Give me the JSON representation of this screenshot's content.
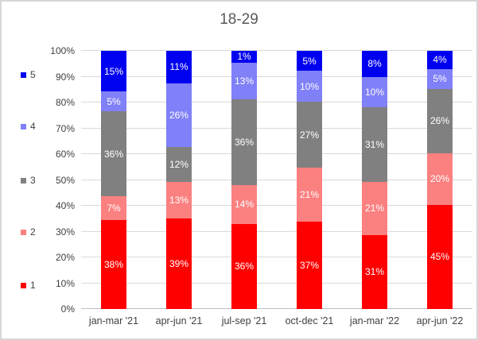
{
  "window": {
    "background": "#FFFFFF",
    "border_color": "#D7D7D7"
  },
  "chart_data": {
    "type": "bar",
    "subtype": "stacked-100",
    "title": "18-29",
    "title_color": "#595959",
    "categories": [
      "jan-mar '21",
      "apr-jun '21",
      "jul-sep '21",
      "oct-dec '21",
      "jan-mar '22",
      "apr-jun '22"
    ],
    "series": [
      {
        "name": "1",
        "color": "#FF0000",
        "values": [
          38,
          39,
          36,
          37,
          31,
          45
        ]
      },
      {
        "name": "2",
        "color": "#FB8080",
        "values": [
          7,
          13,
          14,
          21,
          21,
          20
        ]
      },
      {
        "name": "3",
        "color": "#808080",
        "values": [
          36,
          12,
          36,
          27,
          31,
          26
        ]
      },
      {
        "name": "4",
        "color": "#8080F8",
        "values": [
          5,
          26,
          13,
          10,
          10,
          5
        ]
      },
      {
        "name": "5",
        "color": "#0000F0",
        "values": [
          15,
          11,
          1,
          5,
          8,
          4
        ]
      }
    ],
    "stack_order_top_to_bottom": [
      "5",
      "4",
      "3",
      "2",
      "1"
    ],
    "data_label_suffix": "%",
    "data_label_color": "#FFFFFF",
    "y_axis": {
      "min": 0,
      "max": 100,
      "step": 10,
      "tick_labels": [
        "0%",
        "10%",
        "20%",
        "30%",
        "40%",
        "50%",
        "60%",
        "70%",
        "80%",
        "90%",
        "100%"
      ]
    },
    "legend": {
      "position": "left",
      "items_top_to_bottom": [
        "5",
        "4",
        "3",
        "2",
        "1"
      ]
    },
    "gridline_color": "#D9D9D9",
    "axis_line_color": "#BFBFBF",
    "tick_label_color": "#404040"
  }
}
